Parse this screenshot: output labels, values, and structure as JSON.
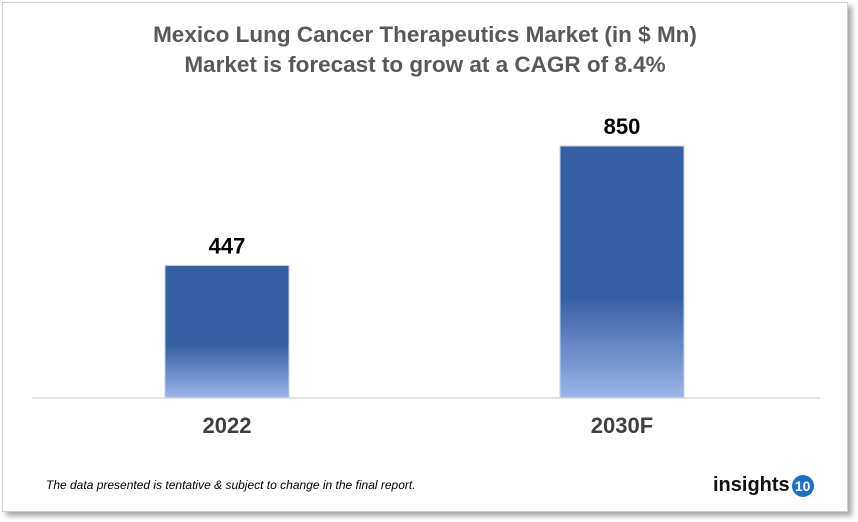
{
  "chart_data": {
    "type": "bar",
    "title": "Mexico Lung Cancer Therapeutics Market (in $ Mn)",
    "subtitle": "Market is forecast to grow at a CAGR of 8.4%",
    "categories": [
      "2022",
      "2030F"
    ],
    "values": [
      447,
      850
    ],
    "ylim": [
      0,
      850
    ],
    "grid": false,
    "bar_color_top": "#365fa3",
    "bar_color_bottom": "#9bb5e8"
  },
  "footer": {
    "note": "The data presented is tentative & subject to change in the final report.",
    "logo_text": "insights",
    "logo_badge": "10"
  }
}
